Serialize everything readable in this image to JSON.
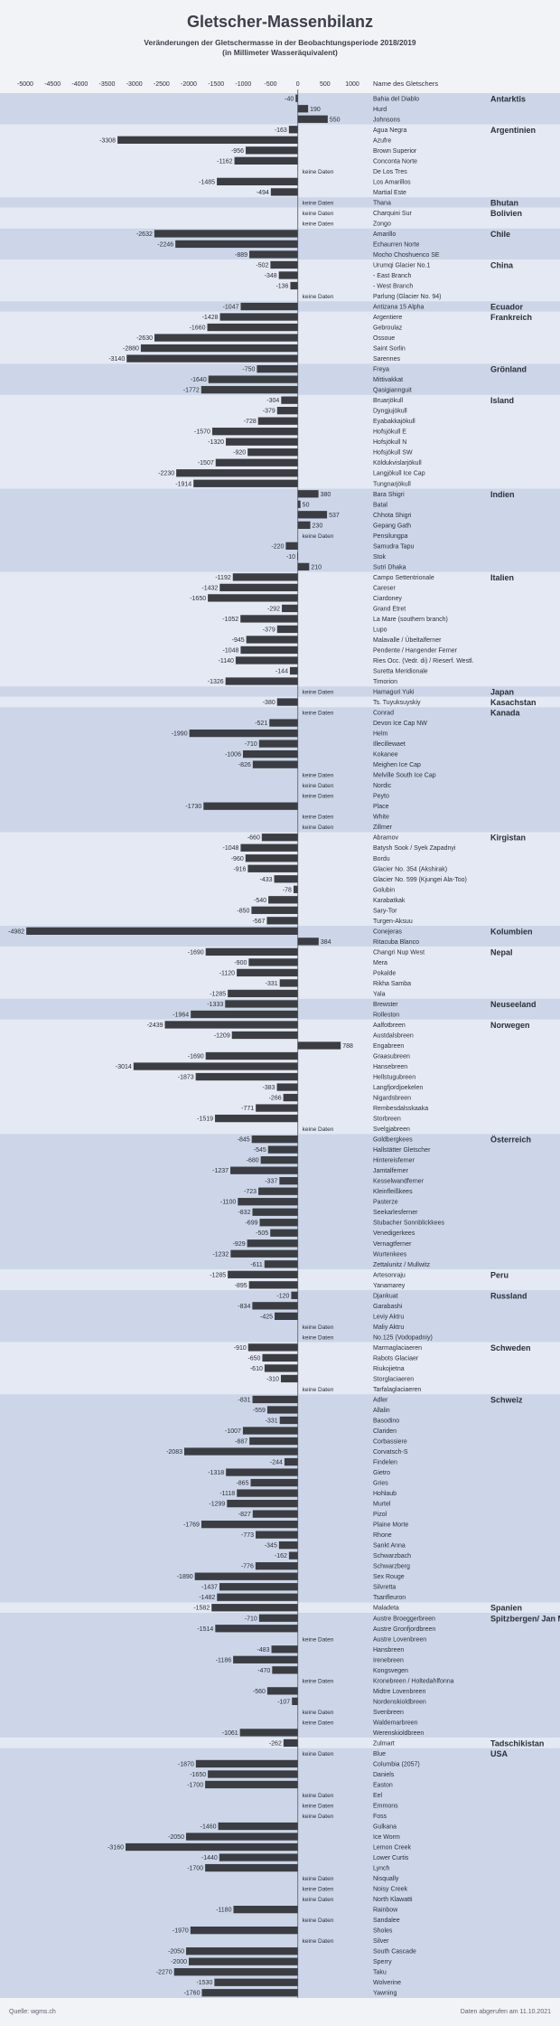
{
  "chart_data": {
    "type": "bar",
    "orientation": "horizontal",
    "title": "Gletscher-Massenbilanz",
    "subtitle_line1": "Veränderungen der Gletschermasse in der Beobachtungsperiode 2018/2019",
    "subtitle_line2": "(in Millimeter Wasseräquivalent)",
    "column_header": "Name des Gletschers",
    "no_data_label": "keine Daten",
    "xlim": [
      -5000,
      1000
    ],
    "ticks": [
      -5000,
      -4500,
      -4000,
      -3500,
      -3000,
      -2500,
      -2000,
      -1500,
      -1000,
      -500,
      0,
      500,
      1000
    ],
    "tick_labels": [
      "-5000",
      "-4500",
      "-4000",
      "-3500",
      "-3000",
      "-2500",
      "-2000",
      "-1500",
      "-1000",
      "-500",
      "0",
      "500",
      "1000"
    ],
    "source": "Quelle: wgms.ch",
    "retrieved": "Daten abgerufen am 11.10.2021",
    "colors": {
      "bar": "#3b3d42",
      "band_dark": "#ccd6e8",
      "band_light": "#e4e9f3",
      "zero_line": "#6d7382",
      "text": "#2b2f38"
    },
    "groups": [
      {
        "country": "Antarktis",
        "glaciers": [
          {
            "name": "Bahia del Diablo",
            "value": -40
          },
          {
            "name": "Hurd",
            "value": 190
          },
          {
            "name": "Johnsons",
            "value": 550
          }
        ]
      },
      {
        "country": "Argentinien",
        "glaciers": [
          {
            "name": "Agua Negra",
            "value": -163
          },
          {
            "name": "Azufre",
            "value": -3308
          },
          {
            "name": "Brown Superior",
            "value": -956
          },
          {
            "name": "Conconta Norte",
            "value": -1162
          },
          {
            "name": "De Los Tres",
            "value": null
          },
          {
            "name": "Los Amarillos",
            "value": -1485
          },
          {
            "name": "Martial Este",
            "value": -494
          }
        ]
      },
      {
        "country": "Bhutan",
        "glaciers": [
          {
            "name": "Thana",
            "value": null
          }
        ]
      },
      {
        "country": "Bolivien",
        "glaciers": [
          {
            "name": "Charquini Sur",
            "value": null
          },
          {
            "name": "Zongo",
            "value": null
          }
        ]
      },
      {
        "country": "Chile",
        "glaciers": [
          {
            "name": "Amarillo",
            "value": -2632
          },
          {
            "name": "Echaurren Norte",
            "value": -2246
          },
          {
            "name": "Mocho Choshuenco SE",
            "value": -889
          }
        ]
      },
      {
        "country": "China",
        "glaciers": [
          {
            "name": "Urumqi Glacier No.1",
            "value": -502
          },
          {
            "name": "- East Branch",
            "value": -348
          },
          {
            "name": "- West Branch",
            "value": -136
          },
          {
            "name": "Parlung (Glacier No. 94)",
            "value": null
          }
        ]
      },
      {
        "country": "Ecuador",
        "glaciers": [
          {
            "name": "Antizana 15 Alpha",
            "value": -1047
          }
        ]
      },
      {
        "country": "Frankreich",
        "glaciers": [
          {
            "name": "Argentiere",
            "value": -1428
          },
          {
            "name": "Gebroulaz",
            "value": -1660
          },
          {
            "name": "Ossoue",
            "value": -2630
          },
          {
            "name": "Saint Sorlin",
            "value": -2880
          },
          {
            "name": "Sarennes",
            "value": -3140
          }
        ]
      },
      {
        "country": "Grönland",
        "glaciers": [
          {
            "name": "Freya",
            "value": -750
          },
          {
            "name": "Mittivakkat",
            "value": -1640
          },
          {
            "name": "Qasigiannguit",
            "value": -1772
          }
        ]
      },
      {
        "country": "Island",
        "glaciers": [
          {
            "name": "Bruarjökull",
            "value": -304
          },
          {
            "name": "Dyngjujökull",
            "value": -379
          },
          {
            "name": "Eyabakkajökull",
            "value": -728
          },
          {
            "name": "Hofsjökull E",
            "value": -1570
          },
          {
            "name": "Hofsjökull N",
            "value": -1320
          },
          {
            "name": "Hofsjökull SW",
            "value": -920
          },
          {
            "name": "Köldukvislarjökull",
            "value": -1507
          },
          {
            "name": "Langjökull Ice Cap",
            "value": -2230
          },
          {
            "name": "Tungnarjökull",
            "value": -1914
          }
        ]
      },
      {
        "country": "Indien",
        "glaciers": [
          {
            "name": "Bara Shigri",
            "value": 380
          },
          {
            "name": "Batal",
            "value": 50
          },
          {
            "name": "Chhota Shigri",
            "value": 537
          },
          {
            "name": "Gepang Gath",
            "value": 230
          },
          {
            "name": "Pensilungpa",
            "value": null
          },
          {
            "name": "Samudra Tapu",
            "value": -220
          },
          {
            "name": "Stok",
            "value": -10
          },
          {
            "name": "Sutri Dhaka",
            "value": 210
          }
        ]
      },
      {
        "country": "Italien",
        "glaciers": [
          {
            "name": "Campo Settentrionale",
            "value": -1192
          },
          {
            "name": "Careser",
            "value": -1432
          },
          {
            "name": "Ciardoney",
            "value": -1650
          },
          {
            "name": "Grand Etret",
            "value": -292
          },
          {
            "name": "La Mare (southern branch)",
            "value": -1052
          },
          {
            "name": "Lupo",
            "value": -379
          },
          {
            "name": "Malavalle / Übeltalferner",
            "value": -945
          },
          {
            "name": "Pendente / Hangender Ferner",
            "value": -1048
          },
          {
            "name": "Ries Occ. (Vedr. di) / Rieserf. Westl.",
            "value": -1140
          },
          {
            "name": "Suretta Meridionale",
            "value": -144
          },
          {
            "name": "Timorion",
            "value": -1326
          }
        ]
      },
      {
        "country": "Japan",
        "glaciers": [
          {
            "name": "Hamaguri Yuki",
            "value": null
          }
        ]
      },
      {
        "country": "Kasachstan",
        "glaciers": [
          {
            "name": "Ts. Tuyuksuyskiy",
            "value": -380
          }
        ]
      },
      {
        "country": "Kanada",
        "glaciers": [
          {
            "name": "Conrad",
            "value": null
          },
          {
            "name": "Devon Ice Cap NW",
            "value": -521
          },
          {
            "name": "Helm",
            "value": -1990
          },
          {
            "name": "Illecillewaet",
            "value": -710
          },
          {
            "name": "Kokanee",
            "value": -1006
          },
          {
            "name": "Meighen Ice Cap",
            "value": -826
          },
          {
            "name": "Melville South Ice Cap",
            "value": null
          },
          {
            "name": "Nordic",
            "value": null
          },
          {
            "name": "Peyto",
            "value": null
          },
          {
            "name": "Place",
            "value": -1730
          },
          {
            "name": "White",
            "value": null
          },
          {
            "name": "Zillmer",
            "value": null
          }
        ]
      },
      {
        "country": "Kirgistan",
        "glaciers": [
          {
            "name": "Abramov",
            "value": -660
          },
          {
            "name": "Batysh Sook / Syek Zapadnyi",
            "value": -1048
          },
          {
            "name": "Bordu",
            "value": -960
          },
          {
            "name": "Glacier No. 354 (Akshirak)",
            "value": -916
          },
          {
            "name": "Glacier No. 599 (Kjungei Ala-Too)",
            "value": -433
          },
          {
            "name": "Golubin",
            "value": -78
          },
          {
            "name": "Karabatkak",
            "value": -540
          },
          {
            "name": "Sary-Tor",
            "value": -850
          },
          {
            "name": "Turgen-Aksuu",
            "value": -567
          }
        ]
      },
      {
        "country": "Kolumbien",
        "glaciers": [
          {
            "name": "Conejeras",
            "value": -4982
          },
          {
            "name": "Ritacuba Blanco",
            "value": 384
          }
        ]
      },
      {
        "country": "Nepal",
        "glaciers": [
          {
            "name": "Changri Nup West",
            "value": -1690
          },
          {
            "name": "Mera",
            "value": -900
          },
          {
            "name": "Pokalde",
            "value": -1120
          },
          {
            "name": "Rikha Samba",
            "value": -331
          },
          {
            "name": "Yala",
            "value": -1285
          }
        ]
      },
      {
        "country": "Neuseeland",
        "glaciers": [
          {
            "name": "Brewster",
            "value": -1333
          },
          {
            "name": "Rolleston",
            "value": -1964
          }
        ]
      },
      {
        "country": "Norwegen",
        "glaciers": [
          {
            "name": "Aalfotbreen",
            "value": -2439
          },
          {
            "name": "Austdalsbreen",
            "value": -1209
          },
          {
            "name": "Engabreen",
            "value": 788
          },
          {
            "name": "Graasubreen",
            "value": -1690
          },
          {
            "name": "Hansebreen",
            "value": -3014
          },
          {
            "name": "Hellstugubreen",
            "value": -1873
          },
          {
            "name": "Langfjordjoekelen",
            "value": -383
          },
          {
            "name": "Nigardsbreen",
            "value": -266
          },
          {
            "name": "Rembesdalsskaaka",
            "value": -771
          },
          {
            "name": "Storbreen",
            "value": -1519
          },
          {
            "name": "Svelgjabreen",
            "value": null
          }
        ]
      },
      {
        "country": "Österreich",
        "glaciers": [
          {
            "name": "Goldbergkees",
            "value": -845
          },
          {
            "name": "Hallstätter Gletscher",
            "value": -545
          },
          {
            "name": "Hintereisferner",
            "value": -680
          },
          {
            "name": "Jamtalferner",
            "value": -1237
          },
          {
            "name": "Kesselwandferner",
            "value": -337
          },
          {
            "name": "Kleinfleißkees",
            "value": -723
          },
          {
            "name": "Pasterze",
            "value": -1100
          },
          {
            "name": "Seekarlesferner",
            "value": -832
          },
          {
            "name": "Stubacher Sonnblickkees",
            "value": -699
          },
          {
            "name": "Venedigerkees",
            "value": -505
          },
          {
            "name": "Vernagtferner",
            "value": -929
          },
          {
            "name": "Wurtenkees",
            "value": -1232
          },
          {
            "name": "Zettalunitz / Mullwitz",
            "value": -611
          }
        ]
      },
      {
        "country": "Peru",
        "glaciers": [
          {
            "name": "Artesonraju",
            "value": -1285
          },
          {
            "name": "Yanamarey",
            "value": -895
          }
        ]
      },
      {
        "country": "Russland",
        "glaciers": [
          {
            "name": "Djankuat",
            "value": -120
          },
          {
            "name": "Garabashi",
            "value": -834
          },
          {
            "name": "Leviy Aktru",
            "value": -425
          },
          {
            "name": "Maliy Aktru",
            "value": null
          },
          {
            "name": "No.125 (Vodopadniy)",
            "value": null
          }
        ]
      },
      {
        "country": "Schweden",
        "glaciers": [
          {
            "name": "Marmaglaciaeren",
            "value": -910
          },
          {
            "name": "Rabots Glaciaer",
            "value": -650
          },
          {
            "name": "Riukojietna",
            "value": -610
          },
          {
            "name": "Storglaciaeren",
            "value": -310
          },
          {
            "name": "Tarfalaglaciaeren",
            "value": null
          }
        ]
      },
      {
        "country": "Schweiz",
        "glaciers": [
          {
            "name": "Adler",
            "value": -831
          },
          {
            "name": "Allalin",
            "value": -559
          },
          {
            "name": "Basodino",
            "value": -331
          },
          {
            "name": "Clariden",
            "value": -1007
          },
          {
            "name": "Corbassiere",
            "value": -887
          },
          {
            "name": "Corvatsch-S",
            "value": -2083
          },
          {
            "name": "Findelen",
            "value": -244
          },
          {
            "name": "Gietro",
            "value": -1318
          },
          {
            "name": "Gries",
            "value": -865
          },
          {
            "name": "Hohlaub",
            "value": -1118
          },
          {
            "name": "Murtel",
            "value": -1299
          },
          {
            "name": "Pizol",
            "value": -827
          },
          {
            "name": "Plaine Morte",
            "value": -1769
          },
          {
            "name": "Rhone",
            "value": -773
          },
          {
            "name": "Sankt Anna",
            "value": -345
          },
          {
            "name": "Schwarzbach",
            "value": -162
          },
          {
            "name": "Schwarzberg",
            "value": -776
          },
          {
            "name": "Sex Rouge",
            "value": -1890
          },
          {
            "name": "Silvretta",
            "value": -1437
          },
          {
            "name": "Tsanfleuron",
            "value": -1482
          }
        ]
      },
      {
        "country": "Spanien",
        "glaciers": [
          {
            "name": "Maladeta",
            "value": -1582
          }
        ]
      },
      {
        "country": "Spitzbergen/ Jan Mayen",
        "glaciers": [
          {
            "name": "Austre Broeggerbreen",
            "value": -710
          },
          {
            "name": "Austre Gronfjordbreen",
            "value": -1514
          },
          {
            "name": "Austre Lovenbreen",
            "value": null
          },
          {
            "name": "Hansbreen",
            "value": -483
          },
          {
            "name": "Irenebreen",
            "value": -1186
          },
          {
            "name": "Kongsvegen",
            "value": -470
          },
          {
            "name": "Kronebreen / Holtedahlfonna",
            "value": null
          },
          {
            "name": "Midtre Lovenbreen",
            "value": -560
          },
          {
            "name": "Nordenskioldbreen",
            "value": -107
          },
          {
            "name": "Svenbreen",
            "value": null
          },
          {
            "name": "Waldemarbreen",
            "value": null
          },
          {
            "name": "Werenskioldbreen",
            "value": -1061
          }
        ]
      },
      {
        "country": "Tadschikistan",
        "glaciers": [
          {
            "name": "Zulmart",
            "value": -262
          }
        ]
      },
      {
        "country": "USA",
        "glaciers": [
          {
            "name": "Blue",
            "value": null
          },
          {
            "name": "Columbia (2057)",
            "value": -1870
          },
          {
            "name": "Daniels",
            "value": -1650
          },
          {
            "name": "Easton",
            "value": -1700
          },
          {
            "name": "Eel",
            "value": null
          },
          {
            "name": "Emmons",
            "value": null
          },
          {
            "name": "Foss",
            "value": null
          },
          {
            "name": "Gulkana",
            "value": -1460
          },
          {
            "name": "Ice Worm",
            "value": -2050
          },
          {
            "name": "Lemon Creek",
            "value": -3160
          },
          {
            "name": "Lower Curtis",
            "value": -1440
          },
          {
            "name": "Lynch",
            "value": -1700
          },
          {
            "name": "Nisqually",
            "value": null
          },
          {
            "name": "Noisy Creek",
            "value": null
          },
          {
            "name": "North Klawatti",
            "value": null
          },
          {
            "name": "Rainbow",
            "value": -1180
          },
          {
            "name": "Sandalee",
            "value": null
          },
          {
            "name": "Sholes",
            "value": -1970
          },
          {
            "name": "Silver",
            "value": null
          },
          {
            "name": "South Cascade",
            "value": -2050
          },
          {
            "name": "Sperry",
            "value": -2000
          },
          {
            "name": "Taku",
            "value": -2270
          },
          {
            "name": "Wolverine",
            "value": -1530
          },
          {
            "name": "Yawning",
            "value": -1760
          }
        ]
      }
    ]
  }
}
